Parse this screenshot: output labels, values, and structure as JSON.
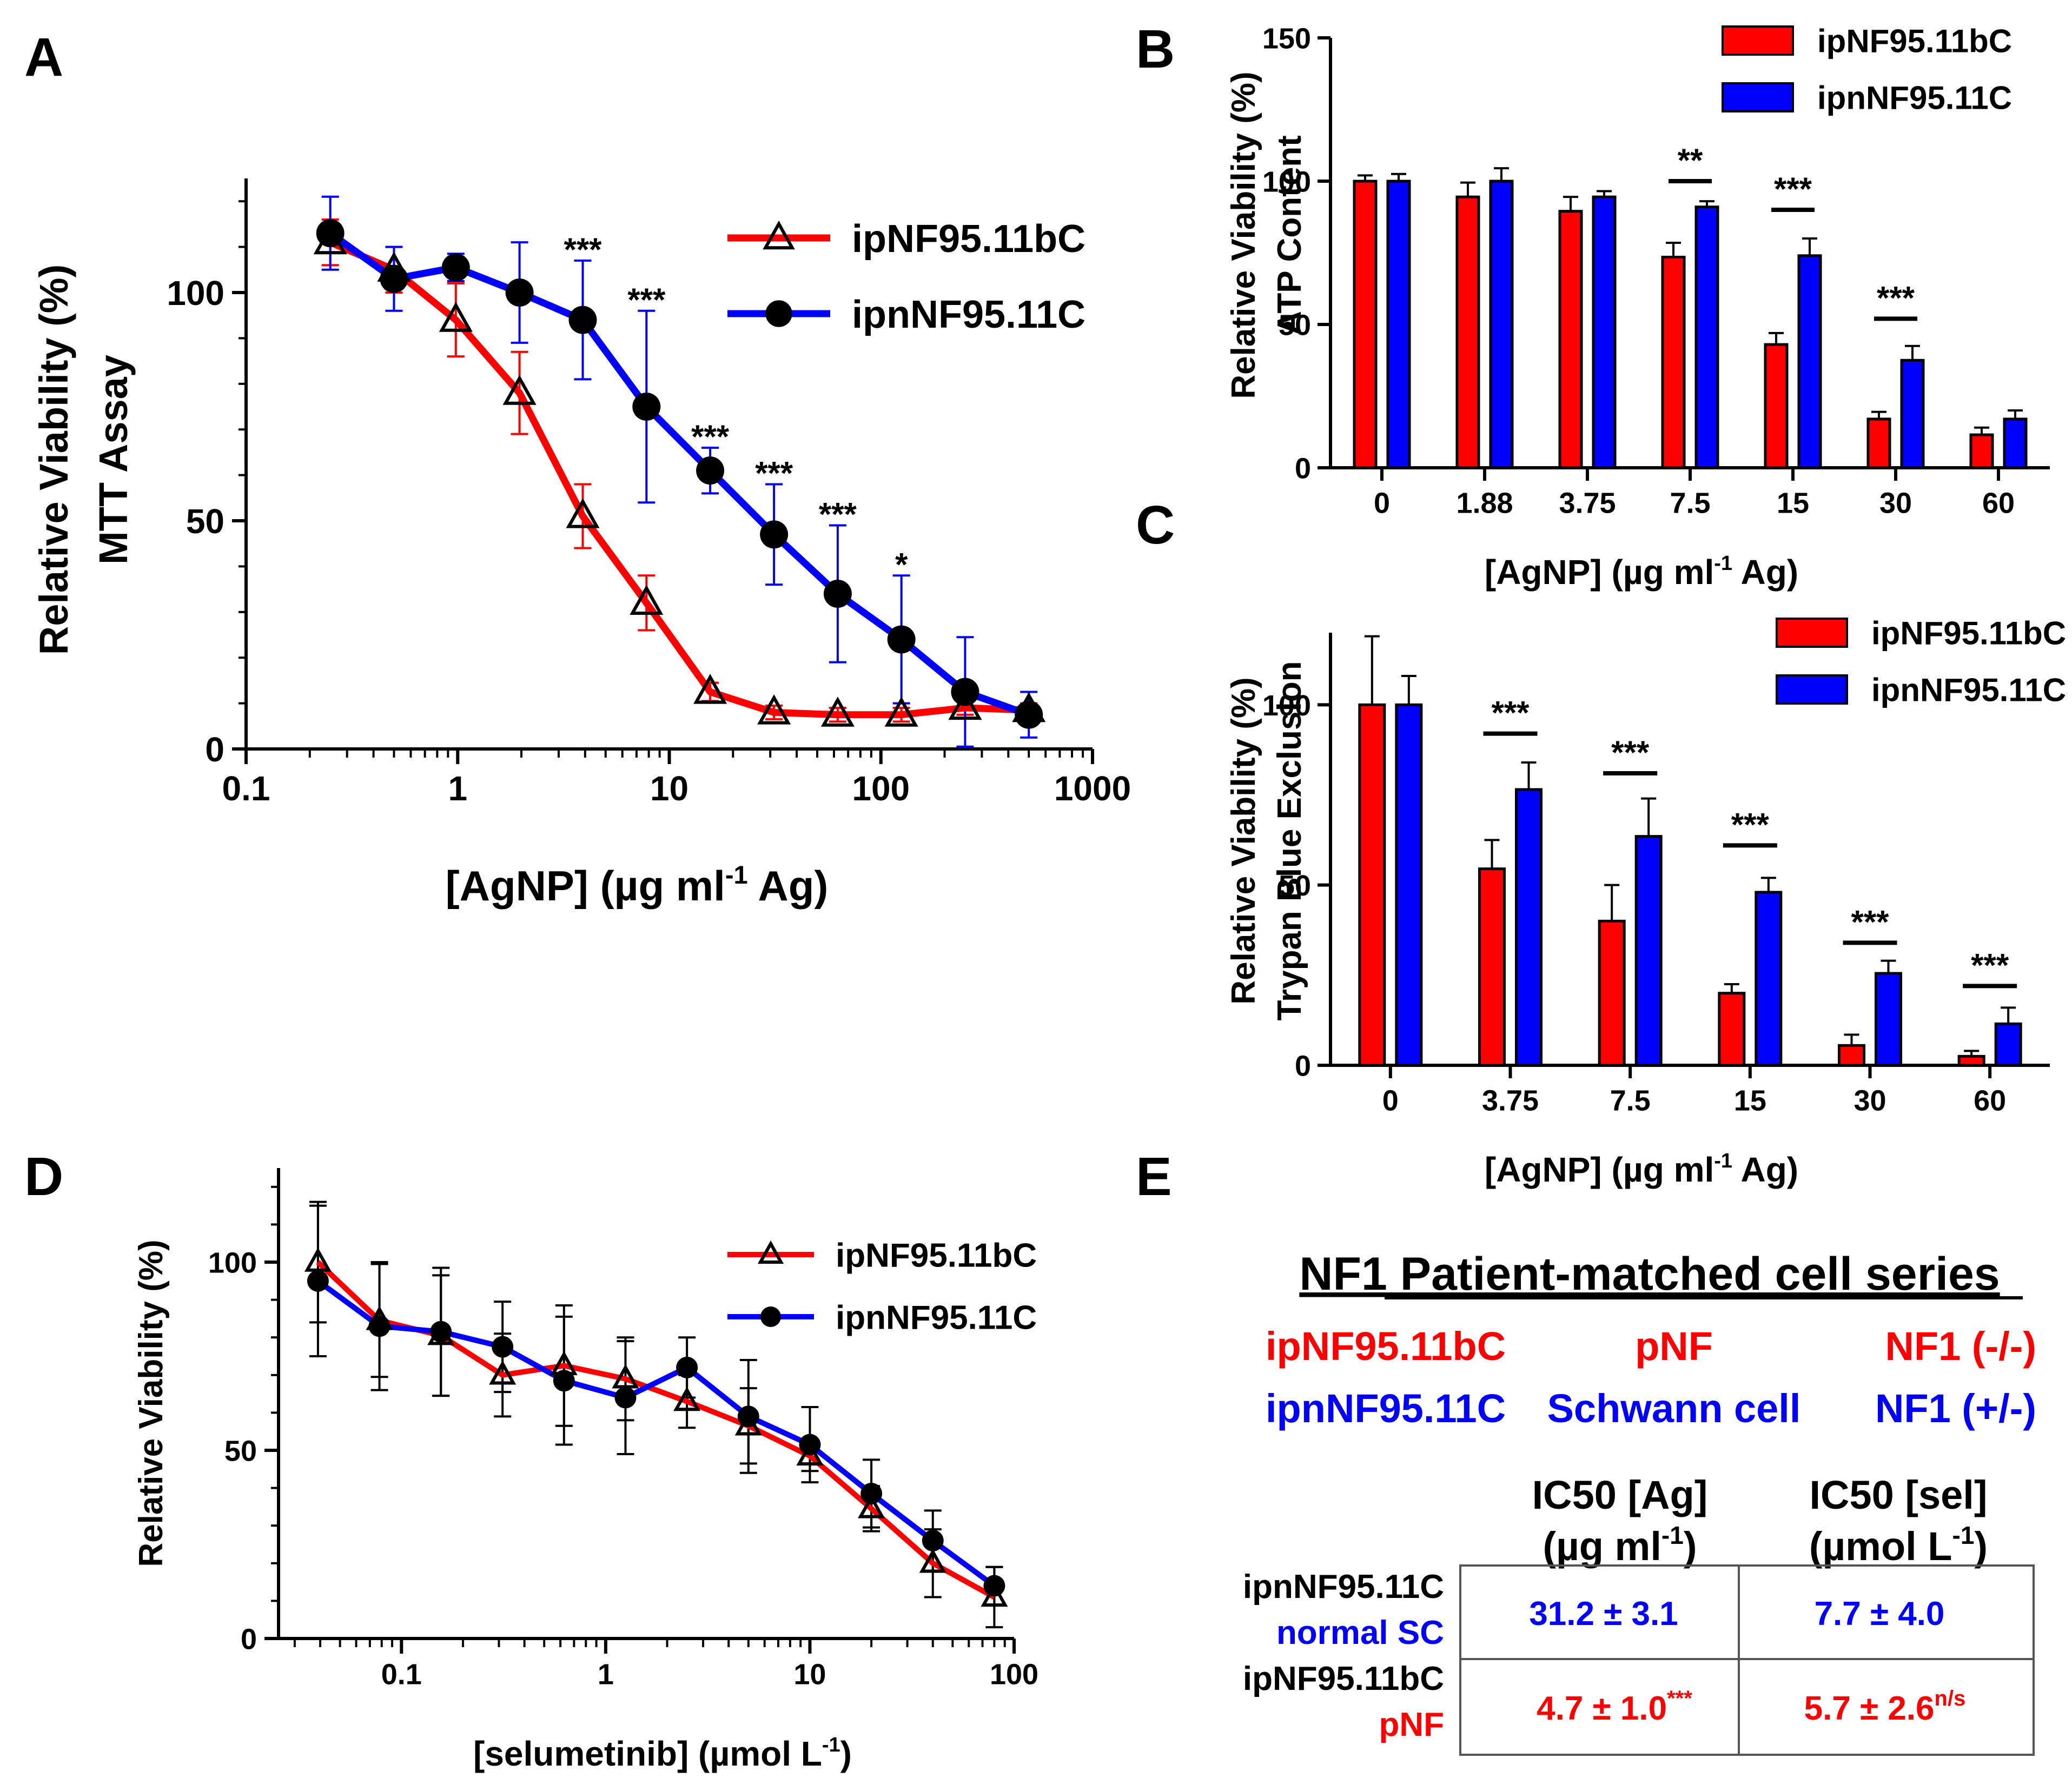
{
  "colors": {
    "red": "#ff0000",
    "blue": "#0000ff",
    "black": "#000000",
    "grid": "#000000"
  },
  "panel_e": {
    "letter": "E",
    "title": "NF1 Patient-matched cell series",
    "rows": [
      {
        "name": "ipNF95.11bC",
        "type": "pNF",
        "genotype": "NF1 (-/-)",
        "color": "red"
      },
      {
        "name": "ipnNF95.11C",
        "type": "Schwann cell",
        "genotype": "NF1 (+/-)",
        "color": "blue"
      }
    ],
    "table": {
      "col_headers": [
        {
          "line1": "IC50 [Ag]",
          "line2": "(µg ml",
          "sup": "-1",
          "close": ")"
        },
        {
          "line1": "IC50 [sel]",
          "line2": "(µmol L",
          "sup": "-1",
          "close": ")"
        }
      ],
      "rows": [
        {
          "label1": "ipnNF95.11C",
          "label2": "normal SC",
          "color": "blue",
          "v1": "31.2 ± 3.1",
          "v1_sup": "",
          "v2": "7.7 ± 4.0",
          "v2_sup": ""
        },
        {
          "label1": "ipNF95.11bC",
          "label2": "pNF",
          "color": "red",
          "v1": "4.7 ±  1.0",
          "v1_sup": "***",
          "v2": "5.7 ± 2.6",
          "v2_sup": "n/s"
        }
      ]
    }
  },
  "chart_data": [
    {
      "panel": "A",
      "type": "line",
      "xscale": "log",
      "xlim": [
        0.1,
        1000
      ],
      "ylim": [
        0,
        125
      ],
      "xticks": [
        0.1,
        1,
        10,
        100,
        1000
      ],
      "xtick_labels": [
        "0.1",
        "1",
        "10",
        "100",
        "1000"
      ],
      "yticks": [
        0,
        50,
        100
      ],
      "ytick_labels": [
        "0",
        "50",
        "100"
      ],
      "ylabel": [
        "Relative Viability (%)",
        "MTT  Assay"
      ],
      "xlabel": {
        "pre": "[AgNP] (µg ml",
        "sup": "-1",
        "post": " Ag)"
      },
      "legend_position": "top-right",
      "x": [
        0.25,
        0.5,
        0.98,
        1.96,
        3.9,
        7.8,
        15.6,
        31.25,
        62.5,
        125,
        250,
        500
      ],
      "series": [
        {
          "name": "ipNF95.11bC",
          "color": "red",
          "marker": "triangle",
          "values": [
            111,
            105,
            94,
            78,
            51,
            32,
            12.5,
            8,
            7.5,
            7.5,
            9,
            8.5
          ],
          "errors": [
            5,
            5,
            8,
            9,
            7,
            6,
            2,
            1.5,
            1.5,
            1.5,
            1.5,
            1.5
          ]
        },
        {
          "name": "ipnNF95.11C",
          "color": "blue",
          "marker": "circle",
          "values": [
            113,
            103,
            105.5,
            100,
            94,
            75,
            61,
            47,
            34,
            24,
            12.5,
            7.5
          ],
          "errors": [
            8,
            7,
            3,
            11,
            13,
            21,
            5,
            11,
            15,
            14,
            12,
            5
          ]
        }
      ],
      "annotations": [
        {
          "x": 3.9,
          "y": 107,
          "text": "***"
        },
        {
          "x": 7.8,
          "y": 96,
          "text": "***"
        },
        {
          "x": 15.6,
          "y": 66,
          "text": "***"
        },
        {
          "x": 31.25,
          "y": 58,
          "text": "***"
        },
        {
          "x": 62.5,
          "y": 49,
          "text": "***"
        },
        {
          "x": 125,
          "y": 38,
          "text": "*"
        }
      ]
    },
    {
      "panel": "B",
      "type": "bar",
      "ylim": [
        0,
        150
      ],
      "yticks": [
        0,
        50,
        100,
        150
      ],
      "ytick_labels": [
        "0",
        "50",
        "100",
        "150"
      ],
      "categories": [
        "0",
        "1.88",
        "3.75",
        "7.5",
        "15",
        "30",
        "60"
      ],
      "ylabel": [
        "Relative Viability  (%)",
        "ATP  Content"
      ],
      "xlabel": {
        "pre": "[AgNP] (µg ml",
        "sup": "-1",
        "post": " Ag)"
      },
      "legend_position": "top-right",
      "series": [
        {
          "name": "ipNF95.11bC",
          "color": "red",
          "values": [
            100,
            94.5,
            89.5,
            73.5,
            43,
            17,
            11.5
          ],
          "errors": [
            2,
            5,
            5,
            5,
            4,
            2.5,
            2.5
          ]
        },
        {
          "name": "ipnNF95.11C",
          "color": "blue",
          "values": [
            100,
            100,
            94.5,
            91,
            74,
            37.5,
            17
          ],
          "errors": [
            2.5,
            4.5,
            2,
            2,
            6,
            5,
            3
          ]
        }
      ],
      "annotations": [
        {
          "category": "7.5",
          "y": 100,
          "text": "**"
        },
        {
          "category": "15",
          "y": 90,
          "text": "***"
        },
        {
          "category": "30",
          "y": 52,
          "text": "***"
        }
      ]
    },
    {
      "panel": "C",
      "type": "bar",
      "ylim": [
        0,
        120
      ],
      "yticks": [
        0,
        50,
        100
      ],
      "ytick_labels": [
        "0",
        "50",
        "100"
      ],
      "categories": [
        "0",
        "3.75",
        "7.5",
        "15",
        "30",
        "60"
      ],
      "ylabel": [
        "Relative Viability (%)",
        "Trypan  Blue  Exclusion"
      ],
      "xlabel": {
        "pre": "[AgNP] (µg ml",
        "sup": "-1",
        "post": " Ag)"
      },
      "legend_position": "top-right",
      "series": [
        {
          "name": "ipNF95.11bC",
          "color": "red",
          "values": [
            100,
            54.5,
            40,
            20,
            5.5,
            2.5
          ],
          "errors": [
            19,
            8,
            10,
            2.5,
            3,
            1.5
          ]
        },
        {
          "name": "ipnNF95.11C",
          "color": "blue",
          "values": [
            100,
            76.5,
            63.5,
            48,
            25.5,
            11.5
          ],
          "errors": [
            8,
            7.5,
            10.5,
            4,
            3.5,
            4.5
          ]
        }
      ],
      "annotations": [
        {
          "category": "3.75",
          "y": 92,
          "text": "***"
        },
        {
          "category": "7.5",
          "y": 81,
          "text": "***"
        },
        {
          "category": "15",
          "y": 61,
          "text": "***"
        },
        {
          "category": "30",
          "y": 34,
          "text": "***"
        },
        {
          "category": "60",
          "y": 22,
          "text": "***"
        }
      ]
    },
    {
      "panel": "D",
      "type": "line",
      "xscale": "log",
      "xlim": [
        0.025,
        100
      ],
      "ylim": [
        0,
        125
      ],
      "xticks": [
        0.1,
        1,
        10,
        100
      ],
      "xtick_labels": [
        "0.1",
        "1",
        "10",
        "100"
      ],
      "yticks": [
        0,
        50,
        100
      ],
      "ytick_labels": [
        "0",
        "50",
        "100"
      ],
      "ylabel": [
        "Relative Viability (%)"
      ],
      "xlabel": {
        "pre": "[selumetinib] (µmol L",
        "sup": "-1",
        "post": ")"
      },
      "legend_position": "top-right",
      "x": [
        0.039,
        0.078,
        0.156,
        0.3125,
        0.625,
        1.25,
        2.5,
        5,
        10,
        20,
        40,
        80
      ],
      "series": [
        {
          "name": "ipNF95.11bC",
          "color": "red",
          "marker": "triangle",
          "values": [
            100,
            84.5,
            80.5,
            70,
            72.5,
            69,
            63,
            56.5,
            48.5,
            34.5,
            20,
            11
          ],
          "errors": [
            16,
            15,
            16,
            11,
            16,
            11,
            7,
            10,
            4,
            6,
            9,
            8
          ]
        },
        {
          "name": "ipnNF95.11C",
          "color": "blue",
          "marker": "circle",
          "values": [
            95,
            83,
            81.5,
            77.5,
            68.5,
            64,
            72,
            59,
            51.5,
            38.5,
            26,
            14
          ],
          "errors": [
            20,
            17,
            17,
            12,
            17,
            15,
            8,
            15,
            10,
            9,
            8,
            5
          ]
        }
      ]
    }
  ]
}
